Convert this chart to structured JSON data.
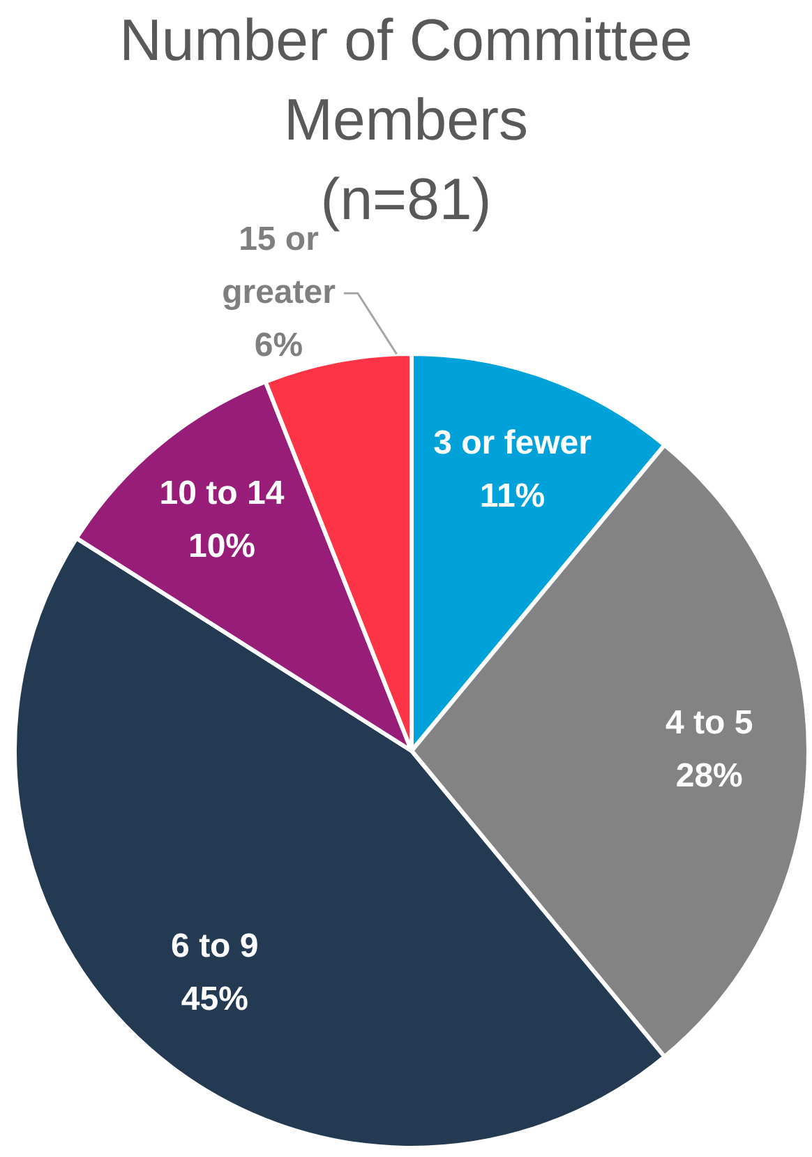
{
  "chart_data": {
    "type": "pie",
    "title": "Number of Committee Members\n(n=81)",
    "categories": [
      "3 or fewer",
      "4 to 5",
      "6 to 9",
      "10 to 14",
      "15 or greater"
    ],
    "values": [
      11,
      28,
      45,
      10,
      6
    ],
    "colors": [
      "#00a2d9",
      "#838383",
      "#243a53",
      "#981d79",
      "#fc3446"
    ],
    "value_labels": [
      "11%",
      "28%",
      "45%",
      "10%",
      "6%"
    ]
  }
}
